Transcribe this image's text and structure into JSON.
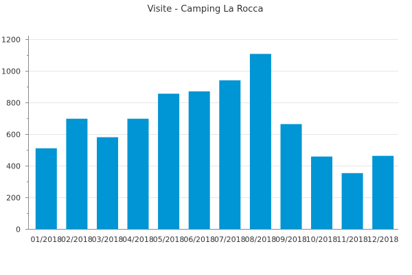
{
  "chart_data": {
    "type": "bar",
    "title": "Visite - Camping La Rocca",
    "xlabel": "",
    "ylabel": "",
    "categories": [
      "01/2018",
      "02/2018",
      "03/2018",
      "04/2018",
      "05/2018",
      "06/2018",
      "07/2018",
      "08/2018",
      "09/2018",
      "10/2018",
      "11/2018",
      "12/2018"
    ],
    "values": [
      510,
      697,
      580,
      697,
      855,
      870,
      940,
      1107,
      663,
      458,
      353,
      462
    ],
    "ylim": [
      0,
      1200
    ],
    "yticks": [
      0,
      200,
      400,
      600,
      800,
      1000,
      1200
    ],
    "grid": true,
    "legend": "none",
    "bar_color": "#0095d4"
  }
}
